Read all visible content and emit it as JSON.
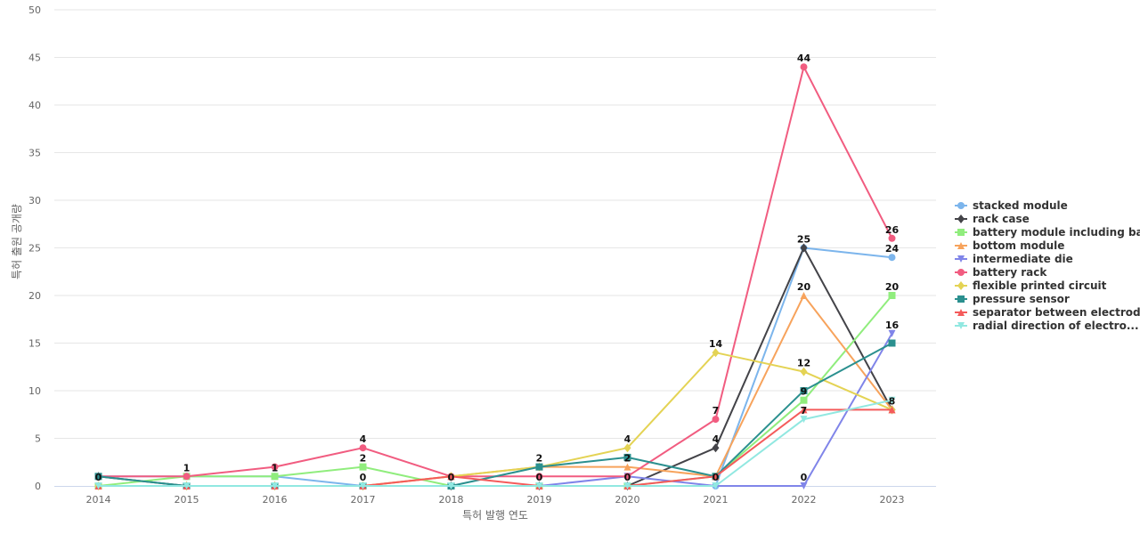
{
  "chart_data": {
    "type": "line",
    "xlabel": "특허 발행 연도",
    "ylabel": "특허 출원 공개량",
    "ylim": [
      0,
      50
    ],
    "y_ticks": [
      0,
      5,
      10,
      15,
      20,
      25,
      30,
      35,
      40,
      45,
      50
    ],
    "categories": [
      "2014",
      "2015",
      "2016",
      "2017",
      "2018",
      "2019",
      "2020",
      "2021",
      "2022",
      "2023"
    ],
    "grid": true,
    "legend_position": "right",
    "series": [
      {
        "name": "stacked module",
        "color": "#7cb5ec",
        "marker": "circle",
        "values": [
          1,
          1,
          1,
          0,
          0,
          0,
          0,
          0,
          25,
          24
        ]
      },
      {
        "name": "rack case",
        "color": "#434348",
        "marker": "diamond",
        "values": [
          1,
          0,
          0,
          0,
          0,
          0,
          0,
          4,
          25,
          8
        ]
      },
      {
        "name": "battery module including ba...",
        "color": "#90ed7d",
        "marker": "square",
        "values": [
          0,
          1,
          1,
          2,
          0,
          0,
          0,
          1,
          9,
          20
        ]
      },
      {
        "name": "bottom module",
        "color": "#f7a35c",
        "marker": "triangle",
        "values": [
          0,
          0,
          0,
          0,
          1,
          2,
          2,
          1,
          20,
          8
        ]
      },
      {
        "name": "intermediate die",
        "color": "#8085e9",
        "marker": "triangle-down",
        "values": [
          0,
          0,
          0,
          0,
          0,
          0,
          1,
          0,
          0,
          16
        ]
      },
      {
        "name": "battery rack",
        "color": "#f15c80",
        "marker": "circle",
        "values": [
          1,
          1,
          2,
          4,
          1,
          1,
          1,
          7,
          44,
          26
        ]
      },
      {
        "name": "flexible printed circuit",
        "color": "#e4d354",
        "marker": "diamond",
        "values": [
          0,
          0,
          0,
          0,
          1,
          2,
          4,
          14,
          12,
          8
        ]
      },
      {
        "name": "pressure sensor",
        "color": "#2b908f",
        "marker": "square",
        "values": [
          1,
          0,
          0,
          0,
          0,
          2,
          3,
          1,
          10,
          15
        ]
      },
      {
        "name": "separator between electrode",
        "color": "#f45b5b",
        "marker": "triangle",
        "values": [
          0,
          0,
          0,
          0,
          1,
          0,
          0,
          1,
          8,
          8
        ]
      },
      {
        "name": "radial direction of electro...",
        "color": "#91e8e1",
        "marker": "triangle-down",
        "values": [
          0,
          0,
          0,
          0,
          0,
          0,
          0,
          0,
          7,
          9
        ]
      }
    ],
    "data_labels": [
      {
        "category": "2014",
        "value": 0,
        "text": "0"
      },
      {
        "category": "2015",
        "value": 1,
        "text": "1"
      },
      {
        "category": "2016",
        "value": 1,
        "text": "1"
      },
      {
        "category": "2017",
        "value": 4,
        "text": "4"
      },
      {
        "category": "2017",
        "value": 2,
        "text": "2"
      },
      {
        "category": "2017",
        "value": 0,
        "text": "0"
      },
      {
        "category": "2018",
        "value": 0,
        "text": "0"
      },
      {
        "category": "2019",
        "value": 2,
        "text": "2"
      },
      {
        "category": "2019",
        "value": 0,
        "text": "0"
      },
      {
        "category": "2020",
        "value": 4,
        "text": "4"
      },
      {
        "category": "2020",
        "value": 2,
        "text": "2"
      },
      {
        "category": "2020",
        "value": 0,
        "text": "0"
      },
      {
        "category": "2021",
        "value": 14,
        "text": "14"
      },
      {
        "category": "2021",
        "value": 7,
        "text": "7"
      },
      {
        "category": "2021",
        "value": 4,
        "text": "4"
      },
      {
        "category": "2021",
        "value": 0,
        "text": "0"
      },
      {
        "category": "2022",
        "value": 44,
        "text": "44"
      },
      {
        "category": "2022",
        "value": 25,
        "text": "25"
      },
      {
        "category": "2022",
        "value": 20,
        "text": "20"
      },
      {
        "category": "2022",
        "value": 12,
        "text": "12"
      },
      {
        "category": "2022",
        "value": 9,
        "text": "9"
      },
      {
        "category": "2022",
        "value": 7,
        "text": "7"
      },
      {
        "category": "2022",
        "value": 0,
        "text": "0"
      },
      {
        "category": "2023",
        "value": 26,
        "text": "26"
      },
      {
        "category": "2023",
        "value": 24,
        "text": "24"
      },
      {
        "category": "2023",
        "value": 20,
        "text": "20"
      },
      {
        "category": "2023",
        "value": 16,
        "text": "16"
      },
      {
        "category": "2023",
        "value": 8,
        "text": "8"
      }
    ]
  }
}
